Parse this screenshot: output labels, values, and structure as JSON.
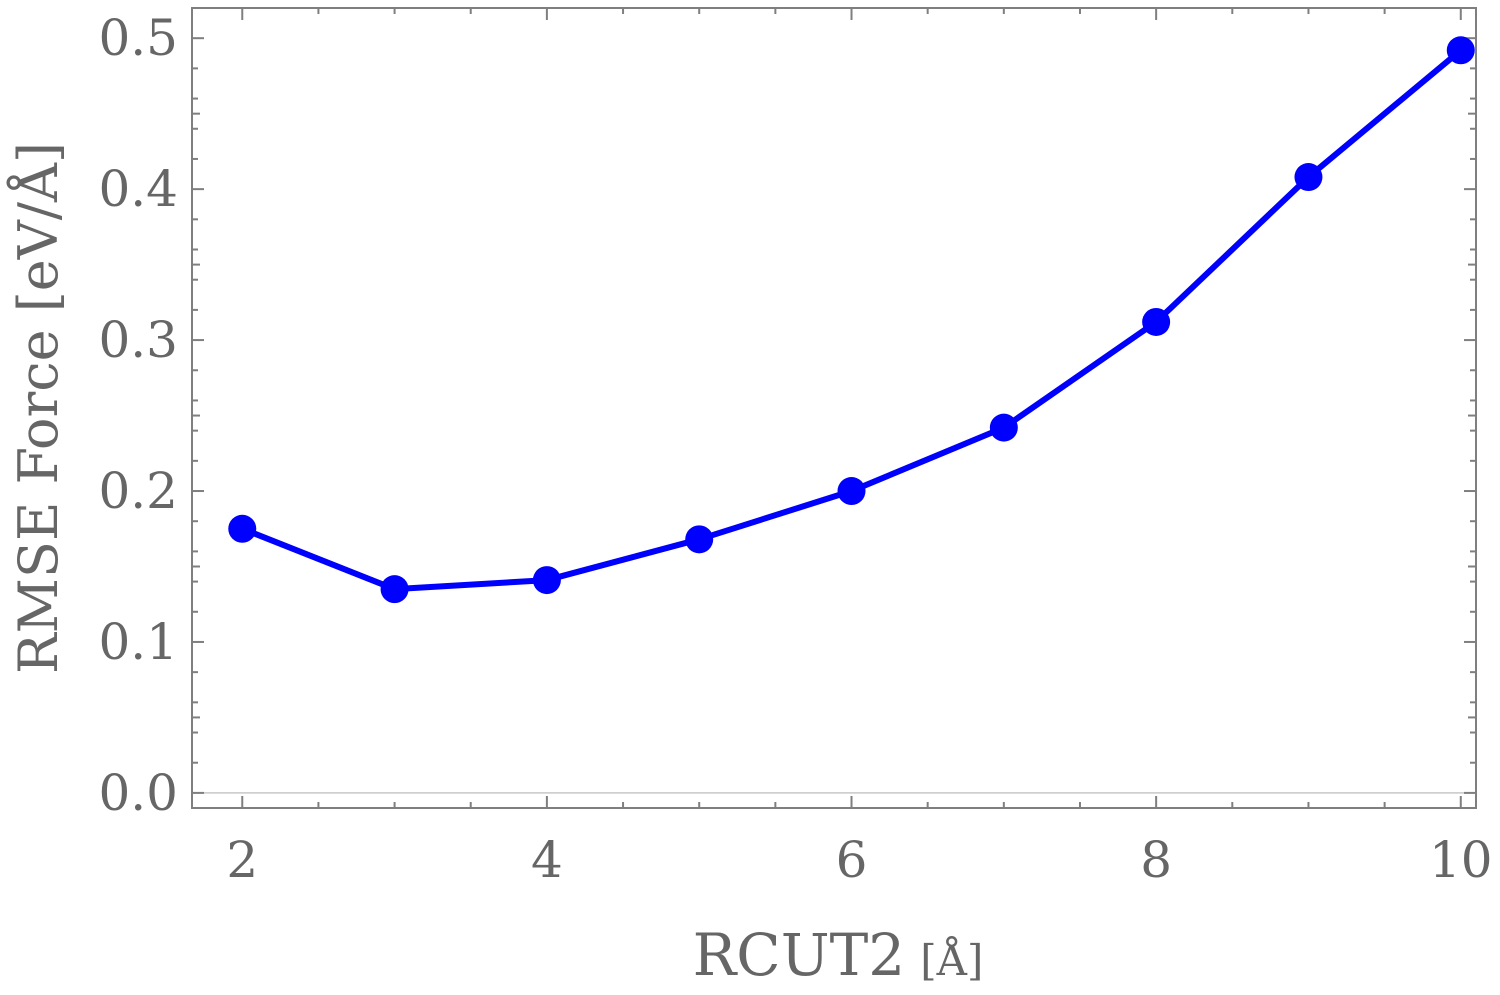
{
  "chart_data": {
    "type": "line",
    "title": "",
    "xlabel": "RCUT2",
    "xlabel_unit": "[Å]",
    "ylabel": "RMSE Force [eV/Å]",
    "xlim": [
      1.67,
      10.1
    ],
    "ylim": [
      -0.01,
      0.52
    ],
    "x_ticks": [
      2,
      4,
      6,
      8,
      10
    ],
    "x_tick_labels": [
      "2",
      "4",
      "6",
      "8",
      "10"
    ],
    "y_ticks": [
      0.0,
      0.1,
      0.2,
      0.3,
      0.4,
      0.5
    ],
    "y_tick_labels": [
      "0.0",
      "0.1",
      "0.2",
      "0.3",
      "0.4",
      "0.5"
    ],
    "grid": false,
    "frame": true,
    "series": [
      {
        "color": "#0000ff",
        "marker": "circle",
        "x": [
          2,
          3,
          4,
          5,
          6,
          7,
          8,
          9,
          10
        ],
        "y": [
          0.175,
          0.135,
          0.141,
          0.168,
          0.2,
          0.242,
          0.312,
          0.408,
          0.492
        ]
      }
    ]
  }
}
